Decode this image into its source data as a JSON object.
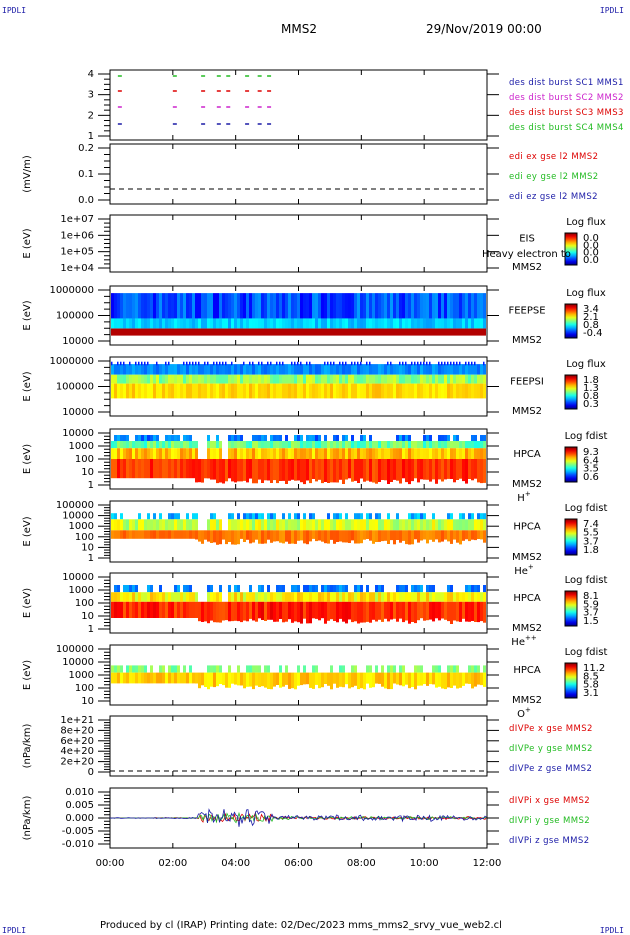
{
  "corner_label": "IPDLI",
  "header": {
    "title": "MMS2",
    "date": "29/Nov/2019 00:00"
  },
  "footer": "Produced by cl (IRAP)   Printing date: 02/Dec/2023   mms_mms2_srvy_vue_web2.cl",
  "colors": {
    "red": "#dd0000",
    "green": "#22bb22",
    "blue": "#1a1aa6",
    "magenta": "#cc22cc",
    "black": "#000000"
  },
  "chart_data": {
    "type": "heatmap",
    "x_ticks": [
      "00:00",
      "02:00",
      "04:00",
      "06:00",
      "08:00",
      "10:00",
      "12:00"
    ],
    "xlim": [
      0,
      12
    ],
    "panels": [
      {
        "id": "burst",
        "type": "scatter",
        "ylabel": "",
        "yticks": [
          "4",
          "3",
          "2",
          "1"
        ],
        "series": [
          {
            "name": "des dist burst SC1 MMS1",
            "color": "blue"
          },
          {
            "name": "des dist burst SC2 MMS2",
            "color": "magenta"
          },
          {
            "name": "des dist burst SC3 MMS3",
            "color": "red"
          },
          {
            "name": "des dist burst SC4 MMS4",
            "color": "green"
          }
        ]
      },
      {
        "id": "edi",
        "type": "line",
        "ylabel": "(mV/m)",
        "yticks": [
          "0.2",
          "0.1",
          "0.0"
        ],
        "series": [
          {
            "name": "edi ex gse l2 MMS2",
            "color": "red"
          },
          {
            "name": "edi ey gse l2 MMS2",
            "color": "green"
          },
          {
            "name": "edi ez gse l2 MMS2",
            "color": "blue"
          }
        ]
      },
      {
        "id": "eis",
        "type": "heatmap",
        "ylabel": "E (eV)",
        "yticks": [
          "1e+07",
          "1e+06",
          "1e+05",
          "1e+04"
        ],
        "instrument": [
          "EIS",
          "MMS2"
        ],
        "overlay": "Heavy electron to",
        "cbar_title": "Log flux",
        "cbar_ticks": [
          "0.0",
          "0.0",
          "0.0",
          "0.0"
        ]
      },
      {
        "id": "feepse",
        "type": "heatmap",
        "ylabel": "E (eV)",
        "yticks": [
          "1000000",
          "100000",
          "10000"
        ],
        "instrument": [
          "FEEPSE",
          "MMS2"
        ],
        "cbar_title": "Log flux",
        "cbar_ticks": [
          "3.4",
          "2.1",
          "0.8",
          "-0.4"
        ]
      },
      {
        "id": "feepsi",
        "type": "heatmap",
        "ylabel": "E (eV)",
        "yticks": [
          "1000000",
          "100000",
          "10000"
        ],
        "instrument": [
          "FEEPSI",
          "MMS2"
        ],
        "cbar_title": "Log flux",
        "cbar_ticks": [
          "1.8",
          "1.3",
          "0.8",
          "0.3"
        ]
      },
      {
        "id": "hpca_h",
        "type": "heatmap",
        "ylabel": "E (eV)",
        "yticks": [
          "10000",
          "1000",
          "100",
          "10",
          "1"
        ],
        "instrument": [
          "HPCA",
          "MMS2"
        ],
        "species": "H",
        "species_sup": "+",
        "cbar_title": "Log fdist",
        "cbar_ticks": [
          "9.3",
          "6.4",
          "3.5",
          "0.6"
        ]
      },
      {
        "id": "hpca_he",
        "type": "heatmap",
        "ylabel": "E (eV)",
        "yticks": [
          "100000",
          "10000",
          "1000",
          "100",
          "10",
          "1"
        ],
        "instrument": [
          "HPCA",
          "MMS2"
        ],
        "species": "He",
        "species_sup": "+",
        "cbar_title": "Log fdist",
        "cbar_ticks": [
          "7.4",
          "5.5",
          "3.7",
          "1.8"
        ]
      },
      {
        "id": "hpca_he2",
        "type": "heatmap",
        "ylabel": "E (eV)",
        "yticks": [
          "10000",
          "1000",
          "100",
          "10",
          "1"
        ],
        "instrument": [
          "HPCA",
          "MMS2"
        ],
        "species": "He",
        "species_sup": "++",
        "cbar_title": "Log fdist",
        "cbar_ticks": [
          "8.1",
          "5.9",
          "3.7",
          "1.5"
        ]
      },
      {
        "id": "hpca_o",
        "type": "heatmap",
        "ylabel": "E (eV)",
        "yticks": [
          "100000",
          "10000",
          "1000",
          "100",
          "10"
        ],
        "instrument": [
          "HPCA",
          "MMS2"
        ],
        "species": "O",
        "species_sup": "+",
        "cbar_title": "Log fdist",
        "cbar_ticks": [
          "11.2",
          "8.5",
          "5.8",
          "3.1"
        ]
      },
      {
        "id": "dpe",
        "type": "line",
        "ylabel": "(nPa/km)",
        "yticks": [
          "1e+21",
          "8e+20",
          "6e+20",
          "4e+20",
          "2e+20",
          "0"
        ],
        "series": [
          {
            "name": "dIVPe x gse MMS2",
            "color": "red"
          },
          {
            "name": "dIVPe y gse MMS2",
            "color": "green"
          },
          {
            "name": "dIVPe z gse MMS2",
            "color": "blue"
          }
        ]
      },
      {
        "id": "dpi",
        "type": "line",
        "ylabel": "(nPa/km)",
        "yticks": [
          "0.010",
          "0.005",
          "0.000",
          "-0.005",
          "-0.010"
        ],
        "series": [
          {
            "name": "dIVPi x gse MMS2",
            "color": "red"
          },
          {
            "name": "dIVPi y gse MMS2",
            "color": "green"
          },
          {
            "name": "dIVPi z gse MMS2",
            "color": "blue"
          }
        ]
      }
    ]
  }
}
